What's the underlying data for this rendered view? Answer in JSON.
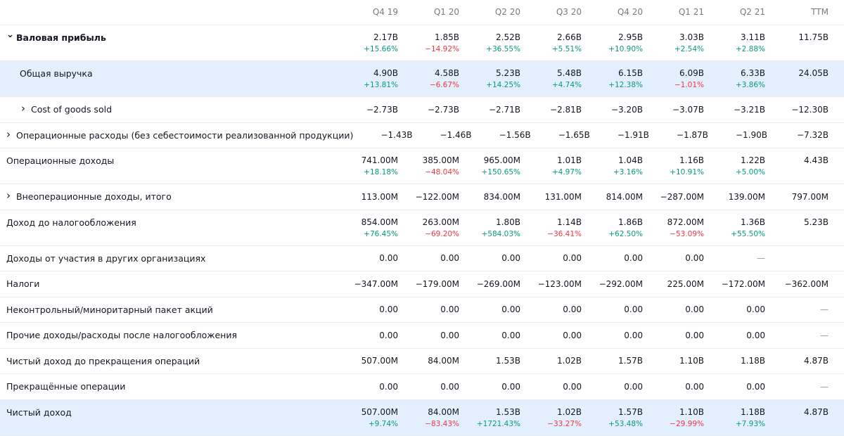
{
  "colors": {
    "positive": "#089981",
    "negative": "#f23645",
    "highlight": "#e3effd",
    "header_text": "#787b86"
  },
  "columns": [
    "Q4 19",
    "Q1 20",
    "Q2 20",
    "Q3 20",
    "Q4 20",
    "Q1 21",
    "Q2 21",
    "TTM"
  ],
  "rows": [
    {
      "label": "Валовая прибыль",
      "icon": "chevron-down-icon",
      "bold": true,
      "highlight": false,
      "values": [
        "2.17B",
        "1.85B",
        "2.52B",
        "2.66B",
        "2.95B",
        "3.03B",
        "3.11B",
        "11.75B"
      ],
      "changes": [
        "+15.66%",
        "−14.92%",
        "+36.55%",
        "+5.51%",
        "+10.90%",
        "+2.54%",
        "+2.88%",
        ""
      ]
    },
    {
      "label": "Общая выручка",
      "icon": "",
      "bold": false,
      "highlight": true,
      "indent": "indent2",
      "values": [
        "4.90B",
        "4.58B",
        "5.23B",
        "5.48B",
        "6.15B",
        "6.09B",
        "6.33B",
        "24.05B"
      ],
      "changes": [
        "+13.81%",
        "−6.67%",
        "+14.25%",
        "+4.74%",
        "+12.38%",
        "−1.01%",
        "+3.86%",
        ""
      ]
    },
    {
      "label": "Cost of goods sold",
      "icon": "chevron-right-icon",
      "bold": false,
      "highlight": false,
      "indent": "indent",
      "values": [
        "−2.73B",
        "−2.73B",
        "−2.71B",
        "−2.81B",
        "−3.20B",
        "−3.07B",
        "−3.21B",
        "−12.30B"
      ],
      "changes": []
    },
    {
      "label": "Операционные расходы (без себестоимости реализованной продукции)",
      "icon": "chevron-right-icon",
      "bold": false,
      "highlight": false,
      "values": [
        "−1.43B",
        "−1.46B",
        "−1.56B",
        "−1.65B",
        "−1.91B",
        "−1.87B",
        "−1.90B",
        "−7.32B"
      ],
      "changes": []
    },
    {
      "label": "Операционные доходы",
      "icon": "",
      "bold": false,
      "highlight": false,
      "values": [
        "741.00M",
        "385.00M",
        "965.00M",
        "1.01B",
        "1.04B",
        "1.16B",
        "1.22B",
        "4.43B"
      ],
      "changes": [
        "+18.18%",
        "−48.04%",
        "+150.65%",
        "+4.97%",
        "+3.16%",
        "+10.91%",
        "+5.00%",
        ""
      ]
    },
    {
      "label": "Внеоперационные доходы, итого",
      "icon": "chevron-right-icon",
      "bold": false,
      "highlight": false,
      "values": [
        "113.00M",
        "−122.00M",
        "834.00M",
        "131.00M",
        "814.00M",
        "−287.00M",
        "139.00M",
        "797.00M"
      ],
      "changes": []
    },
    {
      "label": "Доход до налогообложения",
      "icon": "",
      "bold": false,
      "highlight": false,
      "values": [
        "854.00M",
        "263.00M",
        "1.80B",
        "1.14B",
        "1.86B",
        "872.00M",
        "1.36B",
        "5.23B"
      ],
      "changes": [
        "+76.45%",
        "−69.20%",
        "+584.03%",
        "−36.41%",
        "+62.50%",
        "−53.09%",
        "+55.50%",
        ""
      ]
    },
    {
      "label": "Доходы от участия в других организациях",
      "icon": "",
      "bold": false,
      "highlight": false,
      "values": [
        "0.00",
        "0.00",
        "0.00",
        "0.00",
        "0.00",
        "0.00",
        "—",
        ""
      ],
      "changes": []
    },
    {
      "label": "Налоги",
      "icon": "",
      "bold": false,
      "highlight": false,
      "values": [
        "−347.00M",
        "−179.00M",
        "−269.00M",
        "−123.00M",
        "−292.00M",
        "225.00M",
        "−172.00M",
        "−362.00M"
      ],
      "changes": []
    },
    {
      "label": "Неконтрольный/миноритарный пакет акций",
      "icon": "",
      "bold": false,
      "highlight": false,
      "values": [
        "0.00",
        "0.00",
        "0.00",
        "0.00",
        "0.00",
        "0.00",
        "0.00",
        "—"
      ],
      "changes": []
    },
    {
      "label": "Прочие доходы/расходы после налогообложения",
      "icon": "",
      "bold": false,
      "highlight": false,
      "values": [
        "0.00",
        "0.00",
        "0.00",
        "0.00",
        "0.00",
        "0.00",
        "0.00",
        "—"
      ],
      "changes": []
    },
    {
      "label": "Чистый доход до прекращения операций",
      "icon": "",
      "bold": false,
      "highlight": false,
      "values": [
        "507.00M",
        "84.00M",
        "1.53B",
        "1.02B",
        "1.57B",
        "1.10B",
        "1.18B",
        "4.87B"
      ],
      "changes": []
    },
    {
      "label": "Прекращённые операции",
      "icon": "",
      "bold": false,
      "highlight": false,
      "values": [
        "0.00",
        "0.00",
        "0.00",
        "0.00",
        "0.00",
        "0.00",
        "0.00",
        "—"
      ],
      "changes": []
    },
    {
      "label": "Чистый доход",
      "icon": "",
      "bold": false,
      "highlight": true,
      "values": [
        "507.00M",
        "84.00M",
        "1.53B",
        "1.02B",
        "1.57B",
        "1.10B",
        "1.18B",
        "4.87B"
      ],
      "changes": [
        "+9.74%",
        "−83.43%",
        "+1721.43%",
        "−33.27%",
        "+53.48%",
        "−29.99%",
        "+7.93%",
        ""
      ]
    }
  ]
}
